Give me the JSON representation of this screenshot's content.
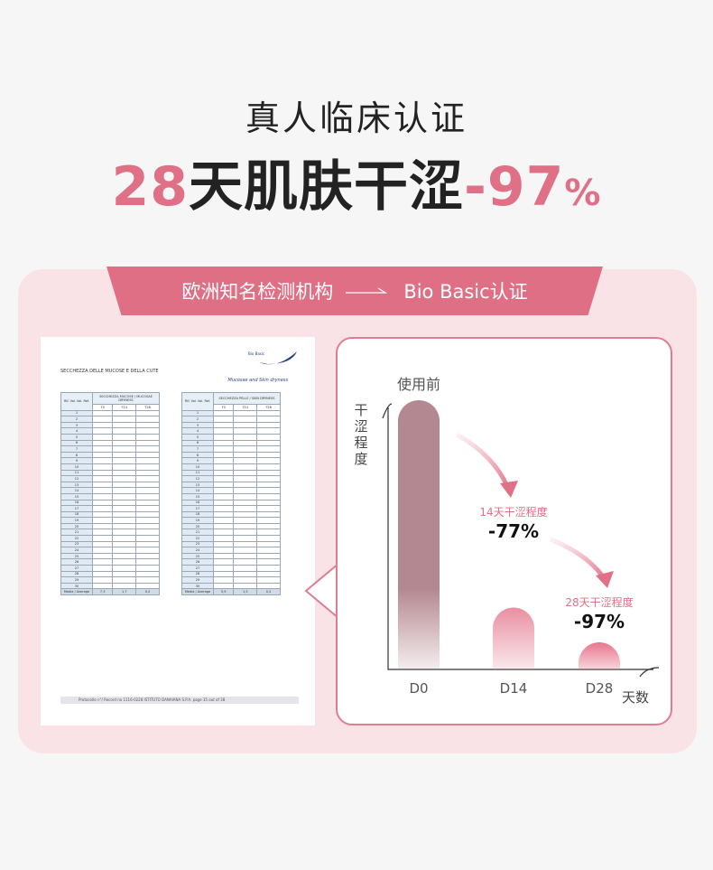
{
  "headline": {
    "line1": "真人临床认证",
    "line2_num": "28",
    "line2_text": "天肌肤干涩",
    "line2_value": "-97",
    "line2_pct": "%"
  },
  "ribbon": {
    "left": "欧洲知名检测机构",
    "right": "Bio Basic认证"
  },
  "document": {
    "title": "SECCHEZZA DELLE MUCOSE E DELLA CUTE",
    "subtitle": "Mucosae and Skin dryness",
    "footer": "Protocollo n°/ Record no 1116-0228        ISTITUTO DANAIANA S.P.A.        page 35 out of 38",
    "table1_header": "SECCHEZZA MUCOSE / MUCOSAE DRYNESS",
    "table2_header": "SECCHEZZA PELLE / SKIN DRYNESS",
    "ref_header": "Rif. Vol. Vol. Ref.",
    "cols": [
      "T0",
      "T14",
      "T28"
    ],
    "average_label": "Media / Average",
    "table1_avg": [
      "7,3",
      "1,7",
      "0,2"
    ],
    "table2_avg": [
      "5,9",
      "1,3",
      "0,2"
    ]
  },
  "colors": {
    "accent": "#e07086",
    "bar_d0": "#b48890",
    "bar_d14": "#e98fa2",
    "bar_d28": "#e7768c"
  },
  "chart_data": {
    "type": "bar",
    "ylabel": "干涩程度",
    "xlabel": "天数",
    "categories": [
      "D0",
      "D14",
      "D28"
    ],
    "values": [
      100,
      23,
      3
    ],
    "ylim": [
      0,
      100
    ],
    "bar_labels": [
      "使用前",
      "14天干涩程度",
      "28天干涩程度"
    ],
    "changes": [
      "",
      "-77%",
      "-97%"
    ]
  }
}
